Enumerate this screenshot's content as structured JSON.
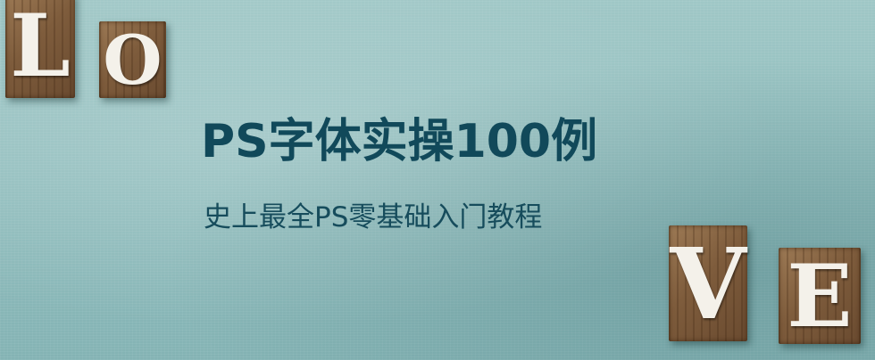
{
  "banner": {
    "title": "PS字体实操100例",
    "subtitle": "史上最全PS零基础入门教程",
    "letters": {
      "l": "L",
      "o": "O",
      "v": "V",
      "e": "E"
    },
    "colors": {
      "background": "#8fbcbc",
      "title": "#11495a",
      "subtitle": "#164c5c",
      "wood": "#7e5c3c",
      "letter": "#f4f1ea"
    }
  }
}
